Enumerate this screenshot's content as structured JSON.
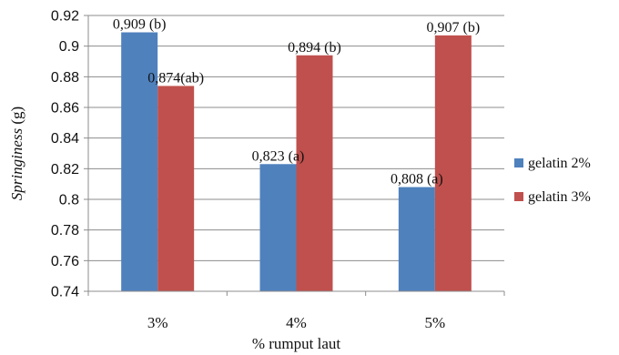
{
  "chart_data": {
    "type": "bar",
    "categories": [
      "3%",
      "4%",
      "5%"
    ],
    "series": [
      {
        "name": "gelatin 2%",
        "color": "#4F81BD",
        "values": [
          0.909,
          0.823,
          0.808
        ],
        "labels": [
          "0,909 (b)",
          "0,823 (a)",
          "0,808 (a)"
        ]
      },
      {
        "name": "gelatin 3%",
        "color": "#C0504D",
        "values": [
          0.874,
          0.894,
          0.907
        ],
        "labels": [
          "0,874(ab)",
          "0,894 (b)",
          "0,907 (b)"
        ]
      }
    ],
    "xlabel": "% rumput laut",
    "ylabel_italic": "Springiness",
    "ylabel_unit": " (g)",
    "ylim": [
      0.74,
      0.92
    ],
    "yticks": [
      0.74,
      0.76,
      0.78,
      0.8,
      0.82,
      0.84,
      0.86,
      0.88,
      0.9,
      0.92
    ],
    "ytick_labels": [
      "0.74",
      "0.76",
      "0.78",
      "0.8",
      "0.82",
      "0.84",
      "0.86",
      "0.88",
      "0.9",
      "0.92"
    ],
    "grid": true,
    "legend_position": "right"
  }
}
